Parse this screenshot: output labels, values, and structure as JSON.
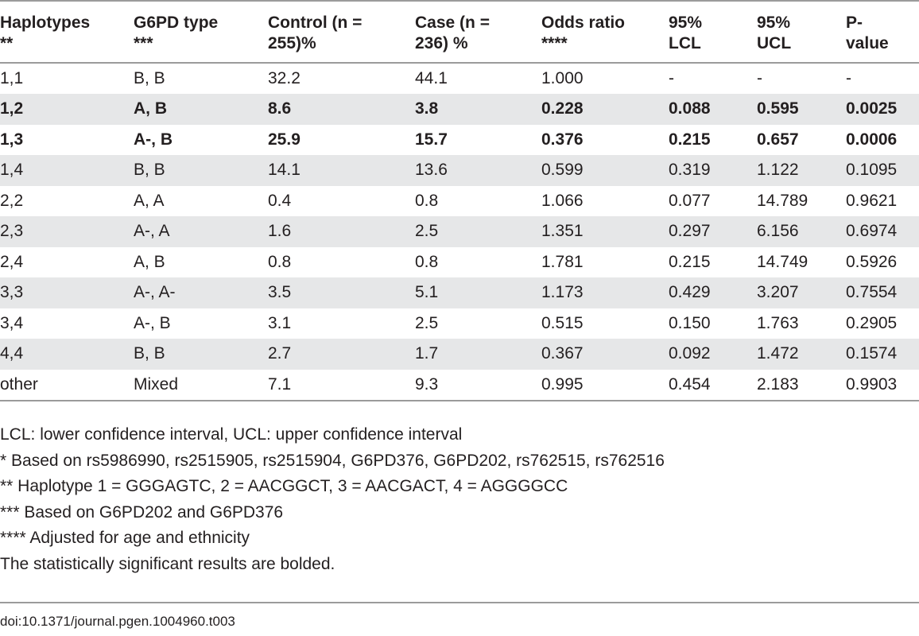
{
  "table": {
    "headers": [
      {
        "line1": "Haplotypes",
        "line2": "**"
      },
      {
        "line1": "G6PD type",
        "line2": "***"
      },
      {
        "line1": "Control (n =",
        "line2": "255)%"
      },
      {
        "line1": "Case (n =",
        "line2": "236) %"
      },
      {
        "line1": "Odds ratio",
        "line2": "****"
      },
      {
        "line1": "95%",
        "line2": "LCL"
      },
      {
        "line1": "95%",
        "line2": "UCL"
      },
      {
        "line1": "P-",
        "line2": "value"
      }
    ],
    "rows": [
      {
        "cells": [
          "1,1",
          "B, B",
          "32.2",
          "44.1",
          "1.000",
          "-",
          "-",
          "-"
        ],
        "bold": false,
        "shaded": false
      },
      {
        "cells": [
          "1,2",
          "A, B",
          "8.6",
          "3.8",
          "0.228",
          "0.088",
          "0.595",
          "0.0025"
        ],
        "bold": true,
        "shaded": true
      },
      {
        "cells": [
          "1,3",
          "A-, B",
          "25.9",
          "15.7",
          "0.376",
          "0.215",
          "0.657",
          "0.0006"
        ],
        "bold": true,
        "shaded": false
      },
      {
        "cells": [
          "1,4",
          "B, B",
          "14.1",
          "13.6",
          "0.599",
          "0.319",
          "1.122",
          "0.1095"
        ],
        "bold": false,
        "shaded": true
      },
      {
        "cells": [
          "2,2",
          "A, A",
          "0.4",
          "0.8",
          "1.066",
          "0.077",
          "14.789",
          "0.9621"
        ],
        "bold": false,
        "shaded": false
      },
      {
        "cells": [
          "2,3",
          "A-, A",
          "1.6",
          "2.5",
          "1.351",
          "0.297",
          "6.156",
          "0.6974"
        ],
        "bold": false,
        "shaded": true
      },
      {
        "cells": [
          "2,4",
          "A, B",
          "0.8",
          "0.8",
          "1.781",
          "0.215",
          "14.749",
          "0.5926"
        ],
        "bold": false,
        "shaded": false
      },
      {
        "cells": [
          "3,3",
          "A-, A-",
          "3.5",
          "5.1",
          "1.173",
          "0.429",
          "3.207",
          "0.7554"
        ],
        "bold": false,
        "shaded": true
      },
      {
        "cells": [
          "3,4",
          "A-, B",
          "3.1",
          "2.5",
          "0.515",
          "0.150",
          "1.763",
          "0.2905"
        ],
        "bold": false,
        "shaded": false
      },
      {
        "cells": [
          "4,4",
          "B, B",
          "2.7",
          "1.7",
          "0.367",
          "0.092",
          "1.472",
          "0.1574"
        ],
        "bold": false,
        "shaded": true
      },
      {
        "cells": [
          "other",
          "Mixed",
          "7.1",
          "9.3",
          "0.995",
          "0.454",
          "2.183",
          "0.9903"
        ],
        "bold": false,
        "shaded": false
      }
    ]
  },
  "notes": [
    "LCL: lower confidence interval, UCL: upper confidence interval",
    "* Based on rs5986990, rs2515905, rs2515904, G6PD376, G6PD202, rs762515, rs762516",
    "** Haplotype 1 = GGGAGTC, 2 = AACGGCT, 3 = AACGACT, 4 = AGGGGCC",
    "*** Based on G6PD202 and G6PD376",
    "**** Adjusted for age and ethnicity",
    "The statistically significant results are bolded."
  ],
  "doi": "doi:10.1371/journal.pgen.1004960.t003",
  "colors": {
    "shaded_row": "#e6e7e8",
    "rule": "#9b9b9b",
    "text": "#231f20"
  }
}
